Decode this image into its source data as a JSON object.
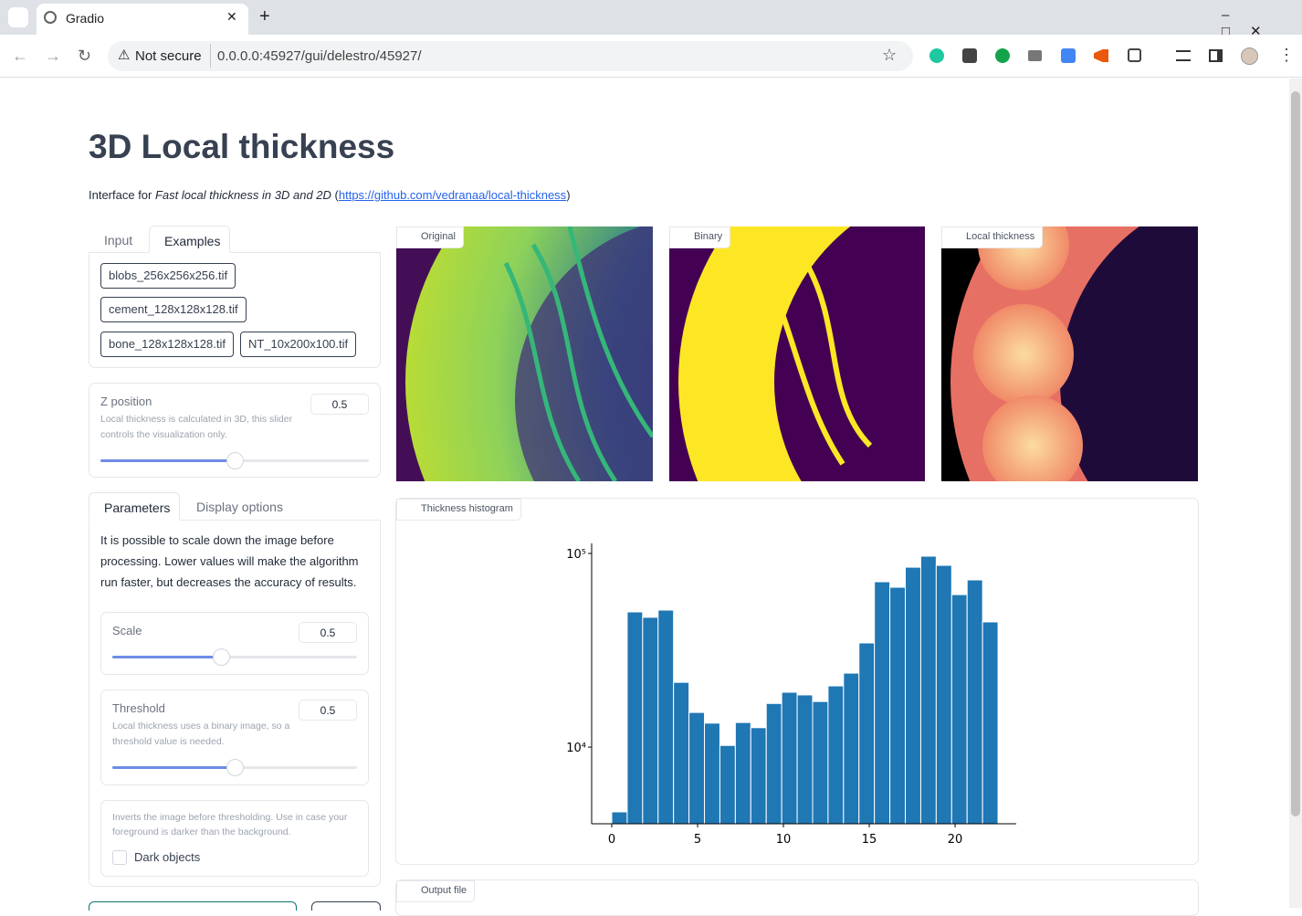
{
  "browser": {
    "tab_title": "Gradio",
    "security": "Not secure",
    "url": "0.0.0.0:45927/gui/delestro/45927/"
  },
  "page": {
    "title": "3D Local thickness",
    "intro": {
      "prefix": "Interface for ",
      "emphasis": "Fast local thickness in 3D and 2D",
      "open": " (",
      "link": "https://github.com/vedranaa/local-thickness",
      "close": ")"
    }
  },
  "input_tabs": [
    "Input",
    "Examples"
  ],
  "examples": [
    "blobs_256x256x256.tif",
    "cement_128x128x128.tif",
    "bone_128x128x128.tif",
    "NT_10x200x100.tif"
  ],
  "z_slider": {
    "label": "Z position",
    "info": "Local thickness is calculated in 3D, this slider controls the visualization only.",
    "value": 0.5,
    "min": 0,
    "max": 1
  },
  "param_tabs": [
    "Parameters",
    "Display options"
  ],
  "param_description": "It is possible to scale down the image before processing. Lower values will make the algorithm run faster, but decreases the accuracy of results.",
  "scale_slider": {
    "label": "Scale",
    "value": 0.5,
    "min": 0.1,
    "max": 1
  },
  "threshold_slider": {
    "label": "Threshold",
    "info": "Local thickness uses a binary image, so a threshold value is needed.",
    "value": 0.5,
    "min": 0,
    "max": 1
  },
  "dark_objects": {
    "info": "Inverts the image before thresholding. Use in case your foreground is darker than the background.",
    "label": "Dark objects"
  },
  "image_labels": [
    "Original",
    "Binary",
    "Local thickness"
  ],
  "histogram_label": "Thickness histogram",
  "output_label": "Output file",
  "chart_data": {
    "type": "histogram",
    "bins": [
      0,
      0.9,
      1.8,
      2.7,
      3.6,
      4.5,
      5.4,
      6.3,
      7.2,
      8.1,
      9,
      9.9,
      10.8,
      11.7,
      12.6,
      13.5,
      14.4,
      15.3,
      16.2,
      17.1,
      18,
      18.9,
      19.8,
      20.7,
      21.6,
      22.5
    ],
    "values": [
      4630,
      49900,
      46800,
      51000,
      21600,
      15100,
      13300,
      10200,
      13400,
      12600,
      16800,
      19200,
      18600,
      17200,
      20700,
      24100,
      34500,
      71400,
      66900,
      84900,
      96800,
      86800,
      61300,
      73000,
      44300
    ],
    "color": "#1f77b4",
    "xlim": [
      -1.17,
      23.56
    ],
    "xticks": [
      0,
      5,
      10,
      15,
      20
    ],
    "ylim": [
      4020,
      112700
    ],
    "yticks": [
      {
        "value": 10000,
        "label": "10⁴"
      },
      {
        "value": 100000,
        "label": "10⁵"
      }
    ],
    "log_y": true
  }
}
